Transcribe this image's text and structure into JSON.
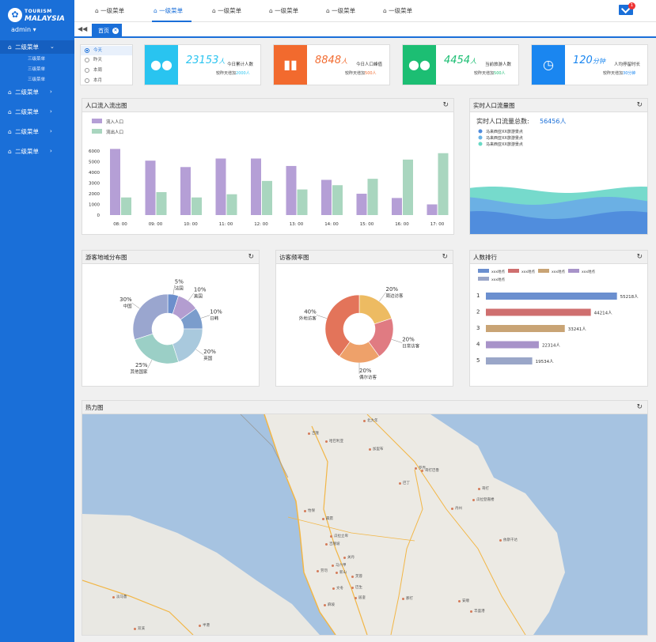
{
  "brand": {
    "line1": "TOURISM",
    "line2": "MALAYSIA"
  },
  "user": "admin ▾",
  "sidebar": {
    "items": [
      {
        "label": "二级菜单",
        "active": true
      },
      {
        "label": "二级菜单"
      },
      {
        "label": "二级菜单"
      },
      {
        "label": "二级菜单"
      },
      {
        "label": "二级菜单"
      }
    ],
    "sub": [
      "三级菜单",
      "三级菜单",
      "三级菜单"
    ]
  },
  "topmenu": [
    "一级菜单",
    "一级菜单",
    "一级菜单",
    "一级菜单",
    "一级菜单",
    "一级菜单"
  ],
  "mail_badge": "1",
  "tab": {
    "label": "首页"
  },
  "date_options": [
    "今天",
    "昨天",
    "本周",
    "本月"
  ],
  "stats": [
    {
      "value": "23153",
      "unit": "人",
      "label": "今日累计人数",
      "inc_prefix": "较昨天增加",
      "inc": "2000人",
      "color": "#29c4f0",
      "icon": "users-icon"
    },
    {
      "value": "8848",
      "unit": "人",
      "label": "今日人口峰值",
      "inc_prefix": "较昨天增加",
      "inc": "500人",
      "color": "#f26a2e",
      "icon": "bar-chart-icon"
    },
    {
      "value": "4454",
      "unit": "人",
      "label": "当前旅游人数",
      "inc_prefix": "较昨天增加",
      "inc": "500人",
      "color": "#1cbe73",
      "icon": "people-icon"
    },
    {
      "value": "120",
      "unit": "分钟",
      "label": "人均停留时长",
      "inc_prefix": "较昨天增加",
      "inc": "30分钟",
      "color": "#1a86f0",
      "icon": "clock-icon"
    }
  ],
  "panels": {
    "flow": "人口流入流出图",
    "realtime": "实时人口流量图",
    "region": "游客地域分布图",
    "freq": "访客频率图",
    "rank": "人数排行",
    "heat": "热力图"
  },
  "chart_data": [
    {
      "type": "bar",
      "title": "人口流入流出图",
      "categories": [
        "08: 00",
        "09: 00",
        "10: 00",
        "11: 00",
        "12: 00",
        "13: 00",
        "14: 00",
        "15: 00",
        "16: 00",
        "17: 00"
      ],
      "series": [
        {
          "name": "流入人口",
          "color": "#b59fd6",
          "values": [
            6200,
            5100,
            4500,
            5300,
            5300,
            4600,
            3300,
            2000,
            1600,
            1000
          ]
        },
        {
          "name": "流出人口",
          "color": "#a9d6bf",
          "values": [
            1650,
            2150,
            1650,
            1950,
            3200,
            2400,
            2800,
            3400,
            5200,
            5800
          ]
        }
      ],
      "yticks": [
        0,
        1000,
        2000,
        3000,
        4000,
        5000,
        6000
      ],
      "ylim": [
        0,
        6300
      ]
    },
    {
      "type": "area",
      "title": "实时人口流量图",
      "total_label": "实时人口流量总数:",
      "total": "56456人",
      "legend": [
        {
          "name": "马来西亚XX旅游景点",
          "color": "#4f8bdc"
        },
        {
          "name": "马来西亚XX旅游景点",
          "color": "#69b3e6"
        },
        {
          "name": "马来西亚XX旅游景点",
          "color": "#68d9c5"
        }
      ]
    },
    {
      "type": "pie",
      "title": "游客地域分布图",
      "slices": [
        {
          "name": "法国",
          "value": 5,
          "color": "#6c8fcc"
        },
        {
          "name": "美国",
          "value": 10,
          "color": "#b39dd0"
        },
        {
          "name": "日韩",
          "value": 10,
          "color": "#7b9dcc"
        },
        {
          "name": "英国",
          "value": 20,
          "color": "#a9c9dd"
        },
        {
          "name": "其他国家",
          "value": 25,
          "color": "#9bcfc6"
        },
        {
          "name": "中国",
          "value": 30,
          "color": "#9aa6cf"
        }
      ]
    },
    {
      "type": "pie",
      "title": "访客频率图",
      "slices": [
        {
          "name": "周边访客",
          "value": 20,
          "color": "#edbb62"
        },
        {
          "name": "日常访客",
          "value": 20,
          "color": "#e07b82"
        },
        {
          "name": "偶尔访客",
          "value": 20,
          "color": "#eea16a"
        },
        {
          "name": "外地访客",
          "value": 40,
          "color": "#e3745a"
        }
      ]
    },
    {
      "type": "bar",
      "orientation": "horizontal",
      "title": "人数排行",
      "legend": [
        {
          "name": "xxx地点",
          "color": "#6b8fcf"
        },
        {
          "name": "xxx地点",
          "color": "#cf6f6f"
        },
        {
          "name": "xxx地点",
          "color": "#c9a475"
        },
        {
          "name": "xxx地点",
          "color": "#a893c9"
        },
        {
          "name": "xxx地点",
          "color": "#9aa6c8"
        }
      ],
      "ranks": [
        "1",
        "2",
        "3",
        "4",
        "5"
      ],
      "values": [
        55218,
        44214,
        33241,
        22314,
        19534
      ],
      "value_labels": [
        "55218人",
        "44214人",
        "33241人",
        "22314人",
        "19534人"
      ],
      "xlim": [
        0,
        56000
      ]
    }
  ],
  "map_labels": [
    "北大年",
    "吉隆",
    "哈巴利亚",
    "加里布",
    "哥打巴鲁",
    "巴丁",
    "哥打",
    "瓜拉登嘉楼",
    "丹州",
    "怡保",
    "霹雳",
    "瓜拉立卑",
    "吉隆坡",
    "关丹",
    "马六甲",
    "新山",
    "芙蓉",
    "巴生",
    "居銮",
    "麻坡",
    "那打",
    "丰盛港",
    "安顺",
    "文冬",
    "劳勿",
    "淡马鲁",
    "双溪",
    "罗弄",
    "依斯干达",
    "半港"
  ]
}
